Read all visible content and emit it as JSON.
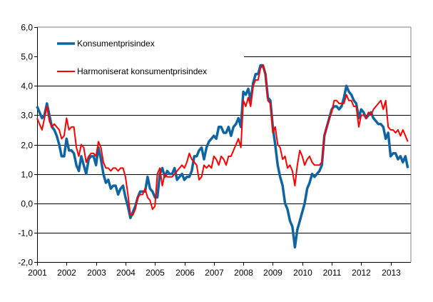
{
  "chart_data": {
    "type": "line",
    "title": "",
    "xlabel": "",
    "ylabel": "",
    "x_start": "2001-01",
    "x_frequency": "monthly",
    "x_ticks": [
      "2001",
      "2002",
      "2003",
      "2004",
      "2005",
      "2006",
      "2007",
      "2008",
      "2009",
      "2010",
      "2011",
      "2012",
      "2013"
    ],
    "ylim": [
      -2.0,
      6.0
    ],
    "y_ticks": [
      "6,0",
      "5,0",
      "4,0",
      "3,0",
      "2,0",
      "1,0",
      "0,0",
      "-1,0",
      "-2,0"
    ],
    "grid": "horizontal",
    "legend_position": "top-left",
    "series": [
      {
        "name": "Konsumentprisindex",
        "color": "#0F65A3",
        "values": [
          3.3,
          3.1,
          2.9,
          3.0,
          3.4,
          3.0,
          2.6,
          2.5,
          2.3,
          2.0,
          1.6,
          1.6,
          2.2,
          1.8,
          1.8,
          1.7,
          1.3,
          1.1,
          1.6,
          1.3,
          1.0,
          1.5,
          1.6,
          1.6,
          1.3,
          1.9,
          1.5,
          1.0,
          0.7,
          0.8,
          0.5,
          0.6,
          0.6,
          0.3,
          0.5,
          0.6,
          0.2,
          -0.1,
          -0.5,
          -0.3,
          -0.1,
          0.2,
          0.4,
          0.4,
          0.4,
          0.9,
          0.5,
          0.4,
          0.2,
          0.2,
          1.0,
          1.2,
          0.9,
          1.1,
          1.0,
          1.0,
          1.2,
          0.8,
          0.9,
          1.0,
          0.8,
          0.9,
          0.9,
          1.1,
          1.6,
          1.6,
          1.8,
          1.9,
          1.5,
          1.9,
          2.1,
          2.2,
          2.3,
          2.2,
          2.6,
          2.6,
          2.4,
          2.4,
          2.6,
          2.3,
          2.6,
          2.7,
          2.9,
          2.6,
          3.8,
          3.7,
          3.9,
          3.5,
          4.1,
          4.4,
          4.4,
          4.7,
          4.7,
          4.4,
          3.6,
          3.5,
          2.6,
          2.0,
          1.3,
          0.9,
          0.6,
          0.0,
          -0.2,
          -0.6,
          -0.8,
          -1.5,
          -0.9,
          -0.6,
          -0.3,
          0.0,
          0.5,
          0.7,
          1.0,
          0.9,
          1.0,
          1.1,
          1.3,
          2.3,
          2.6,
          2.9,
          3.2,
          3.3,
          3.3,
          3.2,
          3.3,
          3.6,
          4.0,
          3.8,
          3.7,
          3.5,
          3.4,
          2.9,
          3.2,
          3.1,
          2.9,
          3.0,
          3.1,
          2.9,
          2.8,
          2.7,
          2.7,
          2.6,
          2.2,
          2.4,
          1.6,
          1.7,
          1.7,
          1.5,
          1.6,
          1.4,
          1.6,
          1.2
        ]
      },
      {
        "name": "Harmoniserat konsumentprisindex",
        "color": "#FF0000",
        "values": [
          2.9,
          2.7,
          2.5,
          2.9,
          3.3,
          2.8,
          2.6,
          2.7,
          2.6,
          2.5,
          2.2,
          2.3,
          2.9,
          2.5,
          2.6,
          2.6,
          1.9,
          1.6,
          2.0,
          1.9,
          1.4,
          1.6,
          1.7,
          1.7,
          1.6,
          2.1,
          1.9,
          1.4,
          1.2,
          1.2,
          1.1,
          1.2,
          1.2,
          1.1,
          1.2,
          1.2,
          0.9,
          0.3,
          -0.4,
          -0.4,
          -0.2,
          0.2,
          0.3,
          0.3,
          0.5,
          0.2,
          0.1,
          -0.2,
          -0.1,
          1.0,
          1.2,
          0.6,
          1.0,
          0.9,
          0.9,
          0.9,
          1.0,
          1.1,
          1.2,
          1.3,
          1.2,
          1.4,
          1.7,
          1.5,
          1.4,
          1.3,
          0.8,
          0.9,
          1.3,
          1.2,
          1.3,
          1.2,
          1.6,
          1.5,
          1.3,
          1.6,
          1.5,
          1.3,
          1.6,
          1.6,
          1.8,
          2.0,
          2.2,
          1.9,
          3.5,
          3.3,
          3.6,
          3.3,
          4.0,
          4.2,
          4.2,
          4.6,
          4.7,
          4.4,
          3.5,
          3.4,
          2.4,
          2.6,
          2.0,
          1.9,
          1.5,
          1.6,
          1.2,
          1.3,
          1.1,
          0.6,
          1.3,
          1.8,
          1.6,
          1.3,
          1.5,
          1.6,
          1.4,
          1.3,
          1.3,
          1.3,
          1.4,
          2.3,
          2.6,
          2.9,
          3.1,
          3.5,
          3.5,
          3.4,
          3.4,
          3.4,
          3.7,
          3.5,
          3.5,
          3.3,
          3.3,
          2.6,
          3.0,
          3.0,
          2.9,
          3.1,
          3.0,
          3.2,
          3.3,
          3.4,
          3.5,
          3.2,
          3.5,
          2.6,
          2.5,
          2.5,
          2.4,
          2.5,
          2.3,
          2.5,
          2.3,
          2.1
        ]
      }
    ]
  }
}
